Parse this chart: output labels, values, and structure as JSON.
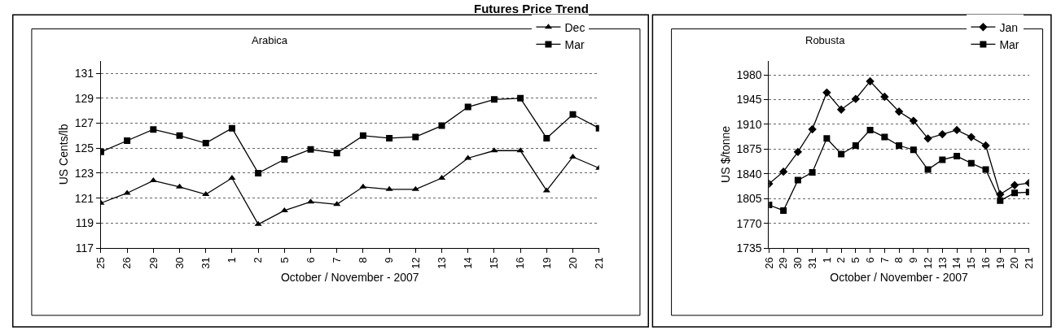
{
  "chart_data": [
    {
      "type": "line",
      "title": "Futures Price Trend",
      "subtitle": "Arabica",
      "xlabel": "October / November - 2007",
      "ylabel": "US Cents/lb",
      "categories": [
        "25",
        "26",
        "29",
        "30",
        "31",
        "1",
        "2",
        "5",
        "6",
        "7",
        "8",
        "9",
        "12",
        "13",
        "14",
        "15",
        "16",
        "19",
        "20",
        "21"
      ],
      "series": [
        {
          "name": "Dec",
          "color": "#000000",
          "marker": "triangle",
          "values": [
            120.6,
            121.4,
            122.4,
            121.9,
            121.3,
            122.6,
            118.9,
            120.0,
            120.7,
            120.5,
            121.9,
            121.7,
            121.7,
            122.6,
            124.2,
            124.8,
            124.8,
            121.6,
            124.3,
            123.4
          ]
        },
        {
          "name": "Mar",
          "color": "#000000",
          "marker": "square",
          "values": [
            124.7,
            125.6,
            126.5,
            126.0,
            125.4,
            126.6,
            123.0,
            124.1,
            124.9,
            124.6,
            126.0,
            125.8,
            125.9,
            126.8,
            128.3,
            128.9,
            129.0,
            125.8,
            127.7,
            126.6
          ]
        }
      ],
      "ylim": [
        117,
        132
      ],
      "yticks": [
        117,
        119,
        121,
        123,
        125,
        127,
        129,
        131
      ],
      "grid": "y",
      "legend": "top right",
      "line_style": "solid"
    },
    {
      "type": "line",
      "subtitle": "Robusta",
      "xlabel": "October / November - 2007",
      "ylabel": "US $/tonne",
      "categories": [
        "26",
        "29",
        "30",
        "31",
        "1",
        "2",
        "5",
        "6",
        "7",
        "8",
        "9",
        "12",
        "13",
        "14",
        "15",
        "16",
        "19",
        "20",
        "21"
      ],
      "series": [
        {
          "name": "Jan",
          "color": "#000000",
          "marker": "diamond",
          "values": [
            1826,
            1843,
            1871,
            1903,
            1955,
            1931,
            1946,
            1971,
            1949,
            1928,
            1915,
            1890,
            1896,
            1902,
            1892,
            1880,
            1811,
            1824,
            1827
          ]
        },
        {
          "name": "Mar",
          "color": "#000000",
          "marker": "square",
          "values": [
            1796,
            1788,
            1831,
            1842,
            1890,
            1868,
            1880,
            1902,
            1892,
            1880,
            1874,
            1846,
            1860,
            1865,
            1855,
            1846,
            1802,
            1813,
            1814
          ]
        }
      ],
      "ylim": [
        1735,
        2000
      ],
      "yticks": [
        1735,
        1770,
        1805,
        1840,
        1875,
        1910,
        1945,
        1980
      ],
      "grid": "y",
      "legend": "top right",
      "line_style": "solid"
    }
  ]
}
